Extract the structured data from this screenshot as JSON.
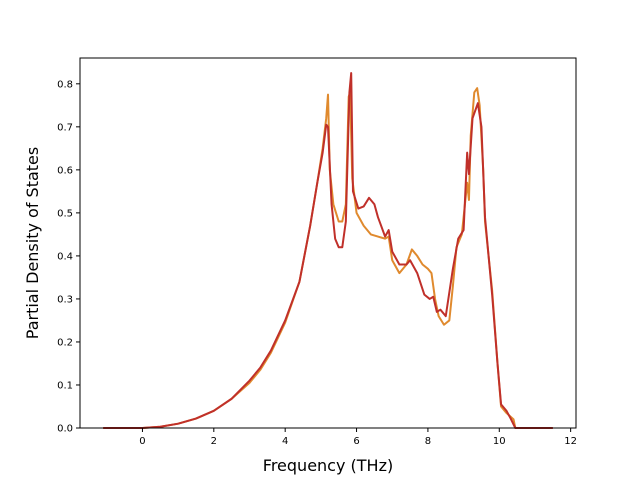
{
  "chart_data": {
    "type": "line",
    "xlabel": "Frequency (THz)",
    "ylabel": "Partial Density of States",
    "xlim": [
      -1.75,
      12.15
    ],
    "ylim": [
      0.0,
      0.86
    ],
    "xticks": [
      0,
      2,
      4,
      6,
      8,
      10,
      12
    ],
    "yticks": [
      0.0,
      0.1,
      0.2,
      0.3,
      0.4,
      0.5,
      0.6,
      0.7,
      0.8
    ],
    "grid": false,
    "legend": "none",
    "series": [
      {
        "color": "#e08a2e",
        "points": [
          [
            -1.1,
            0
          ],
          [
            0,
            0
          ],
          [
            0.5,
            0.003
          ],
          [
            1.0,
            0.01
          ],
          [
            1.5,
            0.022
          ],
          [
            2.0,
            0.04
          ],
          [
            2.5,
            0.068
          ],
          [
            3.0,
            0.105
          ],
          [
            3.3,
            0.135
          ],
          [
            3.6,
            0.175
          ],
          [
            4.0,
            0.245
          ],
          [
            4.4,
            0.34
          ],
          [
            4.7,
            0.47
          ],
          [
            4.9,
            0.57
          ],
          [
            5.05,
            0.65
          ],
          [
            5.15,
            0.72
          ],
          [
            5.2,
            0.775
          ],
          [
            5.25,
            0.6
          ],
          [
            5.35,
            0.52
          ],
          [
            5.5,
            0.48
          ],
          [
            5.6,
            0.48
          ],
          [
            5.7,
            0.52
          ],
          [
            5.78,
            0.77
          ],
          [
            5.82,
            0.78
          ],
          [
            5.88,
            0.58
          ],
          [
            6.0,
            0.5
          ],
          [
            6.2,
            0.47
          ],
          [
            6.4,
            0.45
          ],
          [
            6.6,
            0.445
          ],
          [
            6.8,
            0.44
          ],
          [
            6.9,
            0.445
          ],
          [
            7.0,
            0.39
          ],
          [
            7.2,
            0.36
          ],
          [
            7.4,
            0.38
          ],
          [
            7.55,
            0.415
          ],
          [
            7.7,
            0.4
          ],
          [
            7.85,
            0.38
          ],
          [
            8.0,
            0.37
          ],
          [
            8.1,
            0.36
          ],
          [
            8.2,
            0.3
          ],
          [
            8.3,
            0.26
          ],
          [
            8.45,
            0.24
          ],
          [
            8.6,
            0.25
          ],
          [
            8.7,
            0.33
          ],
          [
            8.8,
            0.42
          ],
          [
            8.95,
            0.45
          ],
          [
            9.1,
            0.57
          ],
          [
            9.15,
            0.53
          ],
          [
            9.2,
            0.68
          ],
          [
            9.3,
            0.78
          ],
          [
            9.38,
            0.79
          ],
          [
            9.45,
            0.75
          ],
          [
            9.55,
            0.6
          ],
          [
            9.6,
            0.48
          ],
          [
            9.8,
            0.32
          ],
          [
            9.95,
            0.15
          ],
          [
            10.05,
            0.05
          ],
          [
            10.2,
            0.035
          ],
          [
            10.4,
            0.02
          ],
          [
            10.45,
            0
          ],
          [
            11.5,
            0
          ]
        ]
      },
      {
        "color": "#c0302a",
        "points": [
          [
            -1.1,
            0
          ],
          [
            0,
            0
          ],
          [
            0.5,
            0.003
          ],
          [
            1.0,
            0.01
          ],
          [
            1.5,
            0.022
          ],
          [
            2.0,
            0.04
          ],
          [
            2.5,
            0.068
          ],
          [
            3.0,
            0.11
          ],
          [
            3.3,
            0.14
          ],
          [
            3.6,
            0.18
          ],
          [
            4.0,
            0.25
          ],
          [
            4.4,
            0.34
          ],
          [
            4.7,
            0.47
          ],
          [
            4.9,
            0.57
          ],
          [
            5.05,
            0.64
          ],
          [
            5.15,
            0.705
          ],
          [
            5.2,
            0.7
          ],
          [
            5.3,
            0.52
          ],
          [
            5.4,
            0.44
          ],
          [
            5.5,
            0.42
          ],
          [
            5.6,
            0.42
          ],
          [
            5.7,
            0.48
          ],
          [
            5.8,
            0.78
          ],
          [
            5.85,
            0.825
          ],
          [
            5.9,
            0.55
          ],
          [
            6.05,
            0.51
          ],
          [
            6.2,
            0.515
          ],
          [
            6.35,
            0.535
          ],
          [
            6.5,
            0.52
          ],
          [
            6.6,
            0.49
          ],
          [
            6.8,
            0.445
          ],
          [
            6.9,
            0.46
          ],
          [
            7.0,
            0.41
          ],
          [
            7.2,
            0.38
          ],
          [
            7.4,
            0.38
          ],
          [
            7.5,
            0.39
          ],
          [
            7.7,
            0.36
          ],
          [
            7.9,
            0.31
          ],
          [
            8.05,
            0.3
          ],
          [
            8.15,
            0.305
          ],
          [
            8.25,
            0.27
          ],
          [
            8.35,
            0.275
          ],
          [
            8.5,
            0.26
          ],
          [
            8.7,
            0.37
          ],
          [
            8.85,
            0.44
          ],
          [
            9.0,
            0.46
          ],
          [
            9.1,
            0.64
          ],
          [
            9.15,
            0.59
          ],
          [
            9.25,
            0.72
          ],
          [
            9.4,
            0.755
          ],
          [
            9.5,
            0.7
          ],
          [
            9.6,
            0.49
          ],
          [
            9.8,
            0.31
          ],
          [
            9.95,
            0.15
          ],
          [
            10.05,
            0.055
          ],
          [
            10.2,
            0.04
          ],
          [
            10.3,
            0.025
          ],
          [
            10.45,
            0
          ],
          [
            11.5,
            0
          ]
        ]
      }
    ]
  }
}
